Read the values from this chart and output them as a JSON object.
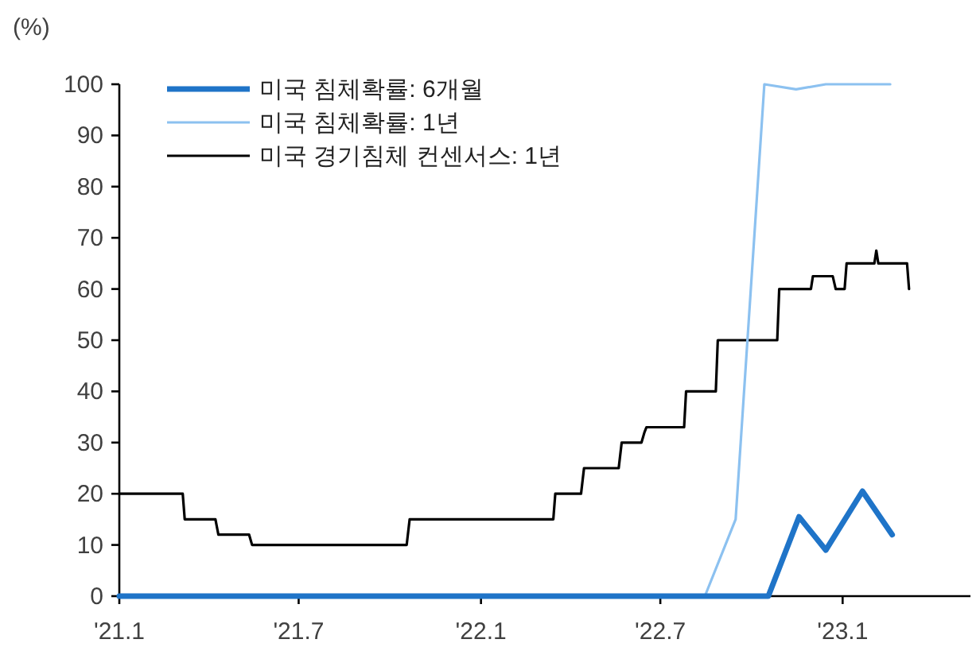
{
  "chart_data": {
    "type": "line",
    "ylabel": "(%)",
    "xlim": [
      "2021-01-01",
      "2023-05-10"
    ],
    "ylim": [
      0,
      100
    ],
    "yticks": [
      0,
      10,
      20,
      30,
      40,
      50,
      60,
      70,
      80,
      90,
      100
    ],
    "xticks": [
      {
        "value": "2021-01-01",
        "label": "'21.1"
      },
      {
        "value": "2021-07-01",
        "label": "'21.7"
      },
      {
        "value": "2022-01-01",
        "label": "'22.1"
      },
      {
        "value": "2022-07-01",
        "label": "'22.7"
      },
      {
        "value": "2023-01-01",
        "label": "'23.1"
      }
    ],
    "grid": false,
    "legend": "top left",
    "marker": "none",
    "line_style": "solid",
    "series": [
      {
        "name": "미국 침체확률: 6개월",
        "color": "#1f74c8",
        "x": [
          "2021-01-01",
          "2022-10-18",
          "2022-11-18",
          "2022-12-15",
          "2023-01-21",
          "2023-02-20"
        ],
        "values": [
          0,
          0,
          15.5,
          9,
          20.5,
          12
        ]
      },
      {
        "name": "미국 침체확률: 1년",
        "color": "#8cc1f0",
        "x": [
          "2021-01-01",
          "2022-08-15",
          "2022-09-15",
          "2022-10-14",
          "2022-11-15",
          "2022-12-15",
          "2023-02-18"
        ],
        "values": [
          0,
          0,
          15,
          100,
          99,
          100,
          100
        ]
      },
      {
        "name": "미국 경기침체  컨센서스: 1년",
        "color": "#000000",
        "x": [
          "2021-01-01",
          "2021-03-06",
          "2021-03-08",
          "2021-04-08",
          "2021-04-11",
          "2021-05-12",
          "2021-05-15",
          "2021-10-18",
          "2021-10-21",
          "2022-03-15",
          "2022-03-17",
          "2022-04-12",
          "2022-04-15",
          "2022-05-20",
          "2022-05-23",
          "2022-06-12",
          "2022-06-15",
          "2022-06-17",
          "2022-07-25",
          "2022-07-27",
          "2022-08-26",
          "2022-08-28",
          "2022-10-27",
          "2022-10-29",
          "2022-11-30",
          "2022-12-02",
          "2022-12-22",
          "2022-12-25",
          "2023-01-03",
          "2023-01-05",
          "2023-02-02",
          "2023-02-04",
          "2023-02-06",
          "2023-03-07",
          "2023-03-09"
        ],
        "values": [
          20,
          20,
          15,
          15,
          12,
          12,
          10,
          10,
          15,
          15,
          20,
          20,
          25,
          25,
          30,
          30,
          32,
          33,
          33,
          40,
          40,
          50,
          50,
          60,
          60,
          62.5,
          62.5,
          60,
          60,
          65,
          65,
          67.5,
          65,
          65,
          60
        ]
      }
    ]
  }
}
